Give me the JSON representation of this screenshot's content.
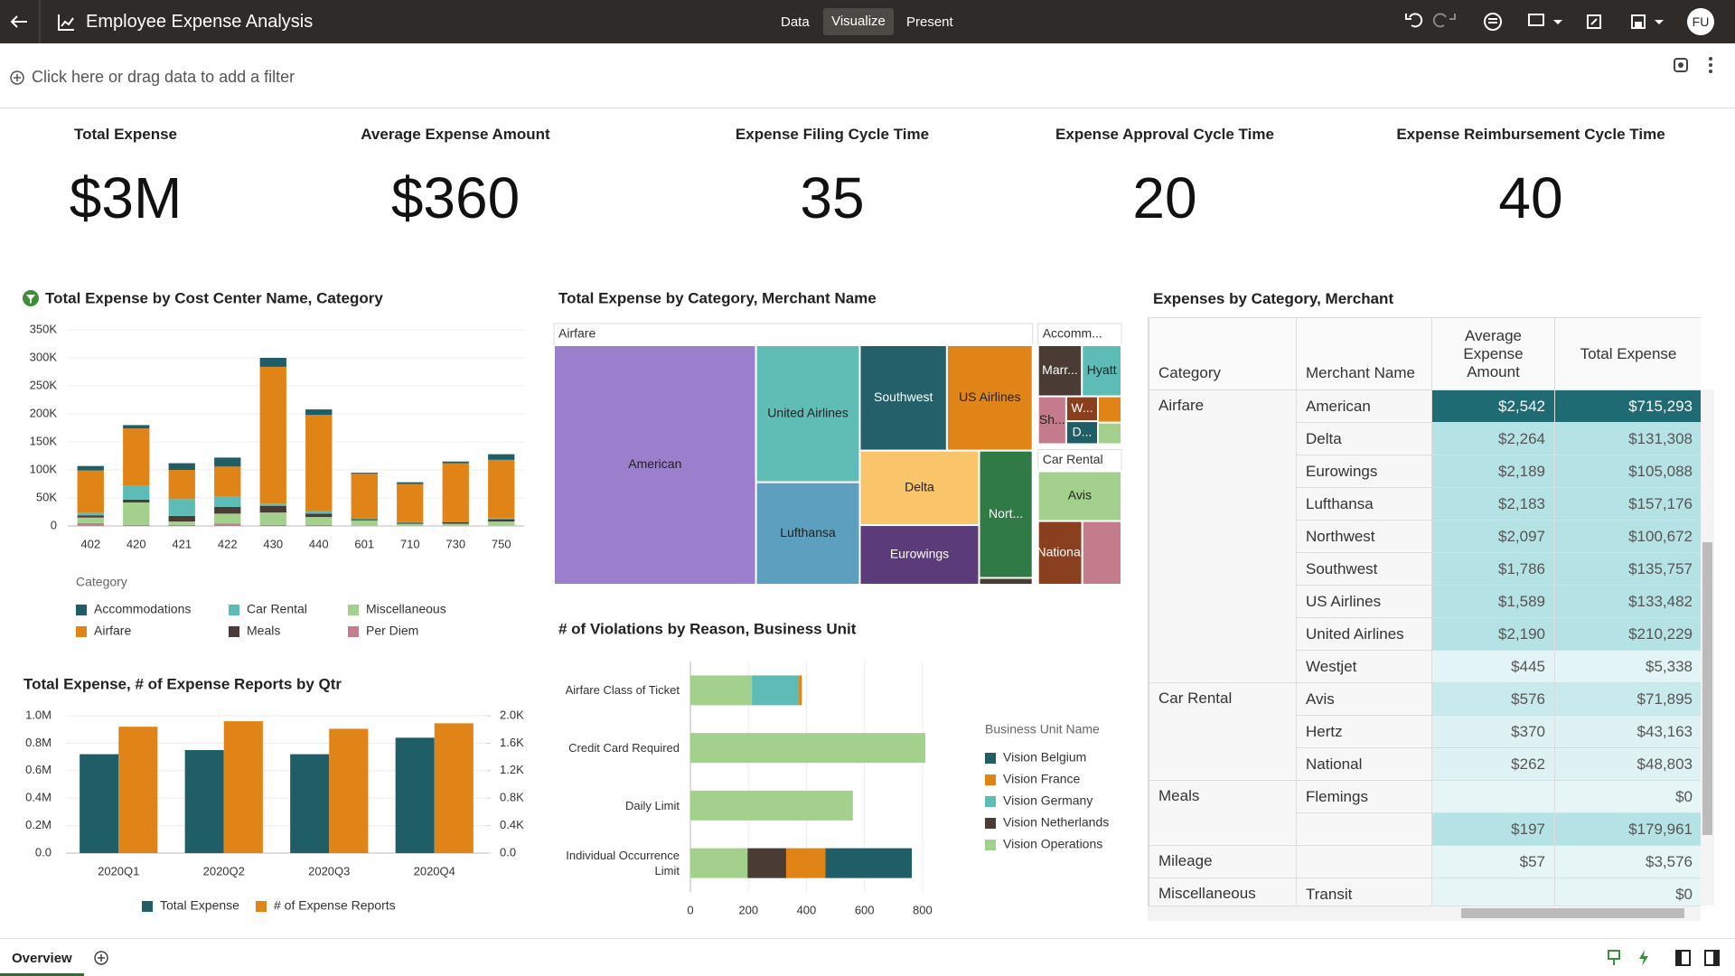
{
  "header": {
    "title": "Employee Expense Analysis",
    "tabs": [
      "Data",
      "Visualize",
      "Present"
    ],
    "user": "FU"
  },
  "filter_bar": {
    "prompt": "Click here or drag data to add a filter"
  },
  "kpis": [
    {
      "title": "Total Expense",
      "value": "$3M"
    },
    {
      "title": "Average Expense Amount",
      "value": "$360"
    },
    {
      "title": "Expense Filing Cycle Time",
      "value": 35
    },
    {
      "title": "Expense Approval Cycle Time",
      "value": 20
    },
    {
      "title": "Expense Reimbursement Cycle Time",
      "value": 40
    }
  ],
  "chart_data": [
    {
      "type": "stacked_bar",
      "title": "Total Expense by Cost Center Name, Category",
      "legend_title": "Category",
      "categories": [
        "402",
        "420",
        "421",
        "422",
        "430",
        "440",
        "601",
        "710",
        "730",
        "750"
      ],
      "series": [
        {
          "name": "Accommodations",
          "color": "#1f5e66",
          "values": [
            8000,
            6000,
            12000,
            16000,
            16000,
            10000,
            2000,
            3000,
            3000,
            10000
          ]
        },
        {
          "name": "Airfare",
          "color": "#e08417",
          "values": [
            75000,
            102000,
            52000,
            54000,
            244000,
            172000,
            80000,
            68000,
            104000,
            104000
          ]
        },
        {
          "name": "Car Rental",
          "color": "#5dbcb5",
          "values": [
            5000,
            25000,
            30000,
            18000,
            4000,
            4000,
            1000,
            1000,
            1000,
            2000
          ]
        },
        {
          "name": "Meals",
          "color": "#4a3b34",
          "values": [
            4000,
            5000,
            10000,
            12000,
            12000,
            6000,
            2000,
            2000,
            3000,
            4000
          ]
        },
        {
          "name": "Miscellaneous",
          "color": "#a3d08d",
          "values": [
            10000,
            40000,
            6000,
            18000,
            22000,
            14000,
            10000,
            4000,
            4000,
            8000
          ]
        },
        {
          "name": "Per Diem",
          "color": "#c47b8b",
          "values": [
            5000,
            2000,
            2000,
            4000,
            2000,
            2000,
            0,
            0,
            0,
            0
          ]
        }
      ],
      "ylim": [
        0,
        350000
      ],
      "yticks": [
        0,
        {
          "value": 50000,
          "label": "50K"
        },
        {
          "value": 100000,
          "label": "100K"
        },
        {
          "value": 150000,
          "label": "150K"
        },
        {
          "value": 200000,
          "label": "200K"
        },
        {
          "value": 250000,
          "label": "250K"
        },
        {
          "value": 300000,
          "label": "300K"
        },
        {
          "value": 350000,
          "label": "350K"
        }
      ],
      "grid": true
    },
    {
      "type": "treemap",
      "title": "Total Expense by Category, Merchant Name",
      "groups": [
        {
          "name": "Airfare",
          "children": [
            {
              "name": "American",
              "value": 715293,
              "color": "#9b7fcc"
            },
            {
              "name": "United Airlines",
              "value": 210229,
              "color": "#5fbdb6"
            },
            {
              "name": "Lufthansa",
              "value": 157176,
              "color": "#5d9fbf"
            },
            {
              "name": "Southwest",
              "value": 135757,
              "color": "#236069"
            },
            {
              "name": "US Airlines",
              "value": 133482,
              "color": "#e08417"
            },
            {
              "name": "Delta",
              "value": 131308,
              "color": "#f9c46a"
            },
            {
              "name": "Eurowings",
              "value": 105088,
              "color": "#5b3b7a"
            },
            {
              "name": "Nort...",
              "value": 100672,
              "color": "#2f7a45"
            },
            {
              "name": null,
              "value": 5338,
              "color": "#4a3b34"
            }
          ]
        },
        {
          "name": "Accomm...",
          "children": [
            {
              "name": "Marr...",
              "value": 40000,
              "color": "#4a3b34"
            },
            {
              "name": "Hyatt",
              "value": 36000,
              "color": "#5dbcb5"
            },
            {
              "name": "Sh...",
              "value": 24000,
              "color": "#c47b8b"
            },
            {
              "name": "W...",
              "value": 14000,
              "color": "#8a3f1f"
            },
            {
              "name": "D...",
              "value": 13000,
              "color": "#1f5e66"
            },
            {
              "name": null,
              "value": 11000,
              "color": "#e08417"
            },
            {
              "name": null,
              "value": 9000,
              "color": "#a3d08d"
            }
          ]
        },
        {
          "name": "Car Rental",
          "children": [
            {
              "name": "Avis",
              "value": 71895,
              "color": "#a3d08d"
            },
            {
              "name": "National",
              "value": 48803,
              "color": "#8a3f1f"
            },
            {
              "name": null,
              "value": 43163,
              "color": "#c47b8b"
            }
          ]
        }
      ]
    },
    {
      "type": "combo",
      "title": "Total Expense, # of Expense Reports by Qtr",
      "categories": [
        "2020Q1",
        "2020Q2",
        "2020Q3",
        "2020Q4"
      ],
      "series": [
        {
          "name": "Total Expense",
          "color": "#1f5e66",
          "values": [
            720000,
            750000,
            720000,
            840000
          ]
        },
        {
          "name": "# of Expense Reports",
          "color": "#e08417",
          "axis": "y2",
          "values": [
            1840,
            1920,
            1810,
            1890
          ]
        }
      ],
      "ylim": [
        0,
        1000000
      ],
      "yticks": [
        {
          "value": 0,
          "label": "0.0"
        },
        {
          "value": 200000,
          "label": "0.2M"
        },
        {
          "value": 400000,
          "label": "0.4M"
        },
        {
          "value": 600000,
          "label": "0.6M"
        },
        {
          "value": 800000,
          "label": "0.8M"
        },
        {
          "value": 1000000,
          "label": "1.0M"
        }
      ],
      "y2lim": [
        0,
        2000
      ],
      "y2ticks": [
        {
          "value": 0,
          "label": "0.0"
        },
        {
          "value": 400,
          "label": "0.4K"
        },
        {
          "value": 800,
          "label": "0.8K"
        },
        {
          "value": 1200,
          "label": "1.2K"
        },
        {
          "value": 1600,
          "label": "1.6K"
        },
        {
          "value": 2000,
          "label": "2.0K"
        }
      ],
      "grid": true
    },
    {
      "type": "horizontal_stacked_bar",
      "title": "# of Violations by Reason, Business Unit",
      "legend_title": "Business Unit Name",
      "categories": [
        "Airfare Class of Ticket",
        "Credit Card Required",
        "Daily Limit",
        "Individual Occurrence Limit"
      ],
      "series": [
        {
          "name": "Vision Belgium",
          "color": "#1f5e66",
          "values": [
            0,
            0,
            0,
            298
          ]
        },
        {
          "name": "Vision France",
          "color": "#e08417",
          "values": [
            10,
            0,
            0,
            135
          ]
        },
        {
          "name": "Vision Germany",
          "color": "#5dbcb5",
          "values": [
            162,
            0,
            0,
            0
          ]
        },
        {
          "name": "Vision Netherlands",
          "color": "#4a3b34",
          "values": [
            0,
            0,
            0,
            133
          ]
        },
        {
          "name": "Vision Operations",
          "color": "#a3d08d",
          "values": [
            212,
            810,
            560,
            197
          ]
        }
      ],
      "xlim": [
        0,
        900
      ],
      "xticks": [
        0,
        200,
        400,
        600,
        800
      ],
      "grid": true
    }
  ],
  "table": {
    "title": "Expenses by Category, Merchant",
    "columns": [
      "Category",
      "Merchant Name",
      "Average Expense Amount",
      "Total Expense"
    ],
    "rows": [
      [
        "Airfare",
        "American",
        "$2,542",
        "$715,293"
      ],
      [
        null,
        "Delta",
        "$2,264",
        "$131,308"
      ],
      [
        null,
        "Eurowings",
        "$2,189",
        "$105,088"
      ],
      [
        null,
        "Lufthansa",
        "$2,183",
        "$157,176"
      ],
      [
        null,
        "Northwest",
        "$2,097",
        "$100,672"
      ],
      [
        null,
        "Southwest",
        "$1,786",
        "$135,757"
      ],
      [
        null,
        "US Airlines",
        "$1,589",
        "$133,482"
      ],
      [
        null,
        "United Airlines",
        "$2,190",
        "$210,229"
      ],
      [
        null,
        "Westjet",
        "$445",
        "$5,338"
      ],
      [
        "Car Rental",
        "Avis",
        "$576",
        "$71,895"
      ],
      [
        null,
        "Hertz",
        "$370",
        "$43,163"
      ],
      [
        null,
        "National",
        "$262",
        "$48,803"
      ],
      [
        "Meals",
        "Flemings",
        null,
        "$0"
      ],
      [
        null,
        null,
        "$197",
        "$179,961"
      ],
      [
        "Mileage",
        null,
        "$57",
        "$3,576"
      ],
      [
        "Miscellaneous",
        "Transit",
        null,
        "$0"
      ]
    ]
  },
  "footer": {
    "tab": "Overview"
  }
}
